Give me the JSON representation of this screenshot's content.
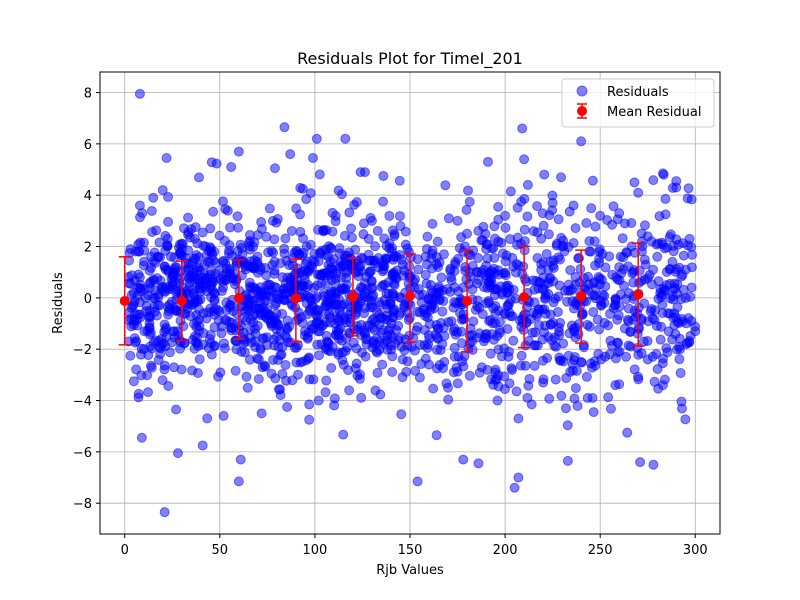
{
  "chart_data": {
    "type": "scatter",
    "title": "Residuals Plot for TimeI_201",
    "xlabel": "Rjb Values",
    "ylabel": "Residuals",
    "xlim": [
      -13,
      313
    ],
    "ylim": [
      -9.2,
      8.8
    ],
    "x_ticks": [
      0,
      50,
      100,
      150,
      200,
      250,
      300
    ],
    "y_ticks": [
      -8,
      -6,
      -4,
      -2,
      0,
      2,
      4,
      6,
      8
    ],
    "grid": true,
    "legend": {
      "placement": "top-right",
      "entries": [
        "Residuals",
        "Mean Residual"
      ]
    },
    "colors": {
      "residuals": "#0000ff",
      "mean": "#ff0000",
      "grid": "#b0b0b0"
    },
    "series": [
      {
        "name": "Residuals",
        "kind": "scatter",
        "points": [
          [
            8,
            7.95
          ],
          [
            21,
            -8.35
          ],
          [
            28,
            -6.05
          ],
          [
            8,
            3.6
          ],
          [
            22,
            5.45
          ],
          [
            15,
            3.9
          ],
          [
            20,
            4.2
          ],
          [
            9,
            -5.45
          ],
          [
            41,
            -5.75
          ],
          [
            56,
            5.1
          ],
          [
            60,
            5.7
          ],
          [
            61,
            -6.3
          ],
          [
            60,
            -7.15
          ],
          [
            84,
            6.65
          ],
          [
            87,
            5.6
          ],
          [
            79,
            5.05
          ],
          [
            99,
            5.45
          ],
          [
            101,
            6.2
          ],
          [
            116,
            6.2
          ],
          [
            124,
            4.9
          ],
          [
            136,
            4.75
          ],
          [
            154,
            -7.15
          ],
          [
            164,
            -5.35
          ],
          [
            178,
            -6.3
          ],
          [
            186,
            -6.45
          ],
          [
            191,
            5.3
          ],
          [
            209,
            6.6
          ],
          [
            210,
            5.4
          ],
          [
            212,
            4.4
          ],
          [
            205,
            -7.4
          ],
          [
            207,
            -7.0
          ],
          [
            240,
            6.1
          ],
          [
            233,
            -6.35
          ],
          [
            260,
            3.3
          ],
          [
            268,
            4.5
          ],
          [
            271,
            -6.4
          ],
          [
            278,
            -6.5
          ],
          [
            283,
            4.85
          ],
          [
            290,
            4.55
          ],
          [
            290,
            4.3
          ],
          [
            52,
            -4.6
          ],
          [
            72,
            -4.5
          ],
          [
            97,
            -4.75
          ],
          [
            102,
            -4.0
          ],
          [
            118,
            -3.6
          ],
          [
            196,
            -4.0
          ],
          [
            207,
            -4.7
          ],
          [
            214,
            -4.15
          ],
          [
            232,
            -4.3
          ],
          [
            246,
            -3.9
          ],
          [
            258,
            -3.4
          ],
          [
            283,
            -3.4
          ],
          [
            27,
            -4.35
          ],
          [
            2,
            -1.7
          ],
          [
            130,
            3.0
          ],
          [
            145,
            2.8
          ],
          [
            175,
            3.0
          ],
          [
            200,
            3.2
          ],
          [
            225,
            3.7
          ],
          [
            236,
            3.6
          ],
          [
            250,
            3.2
          ],
          [
            263,
            2.9
          ],
          [
            297,
            2.3
          ],
          [
            300,
            -1.3
          ],
          [
            292,
            -2.0
          ],
          [
            285,
            0.5
          ],
          [
            295,
            1.1
          ],
          [
            298,
            -0.9
          ],
          [
            170,
            -3.5
          ],
          [
            160,
            -2.6
          ],
          [
            195,
            -2.8
          ],
          [
            220,
            -3.3
          ],
          [
            240,
            -2.5
          ],
          [
            255,
            -2.2
          ],
          [
            275,
            -2.4
          ],
          [
            266,
            -1.9
          ],
          [
            180,
            2.5
          ],
          [
            190,
            1.9
          ],
          [
            215,
            2.6
          ],
          [
            230,
            2.0
          ],
          [
            245,
            1.8
          ],
          [
            260,
            1.2
          ],
          [
            272,
            2.2
          ],
          [
            280,
            1.6
          ],
          [
            288,
            1.4
          ]
        ]
      },
      {
        "name": "Mean Residual",
        "kind": "errorbar",
        "x": [
          0,
          30,
          60,
          90,
          120,
          150,
          180,
          210,
          240,
          270
        ],
        "y": [
          -0.12,
          -0.12,
          0.0,
          -0.02,
          0.04,
          0.08,
          -0.12,
          0.03,
          0.07,
          0.13
        ],
        "err_low": [
          -1.83,
          -1.66,
          -1.61,
          -1.72,
          -1.48,
          -1.72,
          -2.1,
          -1.94,
          -1.76,
          -1.88
        ],
        "err_high": [
          1.6,
          1.43,
          1.48,
          1.51,
          1.54,
          1.71,
          1.86,
          2.01,
          1.86,
          2.13
        ]
      }
    ]
  }
}
